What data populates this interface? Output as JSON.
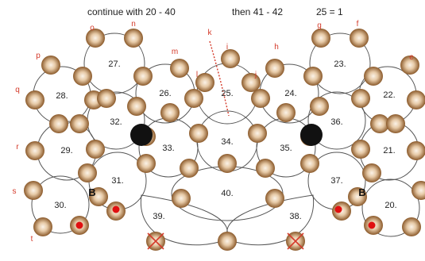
{
  "header": {
    "part1": "continue with 20 - 40",
    "part2": "then  41 - 42",
    "part3": "25 = 1"
  },
  "colors": {
    "bead_dark": "#8b5a2b",
    "bead_light": "#f6e8d6",
    "ring_line": "#555555",
    "letter_red": "#d43a2a",
    "dot_red": "#e01010",
    "dot_black": "#111111"
  },
  "rings": [
    {
      "id": "20",
      "label": "20."
    },
    {
      "id": "21",
      "label": "21."
    },
    {
      "id": "22",
      "label": "22."
    },
    {
      "id": "23",
      "label": "23."
    },
    {
      "id": "24",
      "label": "24."
    },
    {
      "id": "25",
      "label": "25."
    },
    {
      "id": "26",
      "label": "26."
    },
    {
      "id": "27",
      "label": "27."
    },
    {
      "id": "28",
      "label": "28."
    },
    {
      "id": "29",
      "label": "29."
    },
    {
      "id": "30",
      "label": "30."
    },
    {
      "id": "31",
      "label": "31."
    },
    {
      "id": "32",
      "label": "32."
    },
    {
      "id": "33",
      "label": "33."
    },
    {
      "id": "34",
      "label": "34."
    },
    {
      "id": "35",
      "label": "35."
    },
    {
      "id": "36",
      "label": "36."
    },
    {
      "id": "37",
      "label": "37."
    },
    {
      "id": "38",
      "label": "38."
    },
    {
      "id": "39",
      "label": "39."
    },
    {
      "id": "40",
      "label": "40."
    }
  ],
  "letters": [
    "o",
    "n",
    "g",
    "f",
    "k",
    "p",
    "m",
    "i",
    "h",
    "e",
    "q",
    "l",
    "j",
    "r",
    "s",
    "t"
  ],
  "b_labels": [
    "B",
    "B"
  ]
}
